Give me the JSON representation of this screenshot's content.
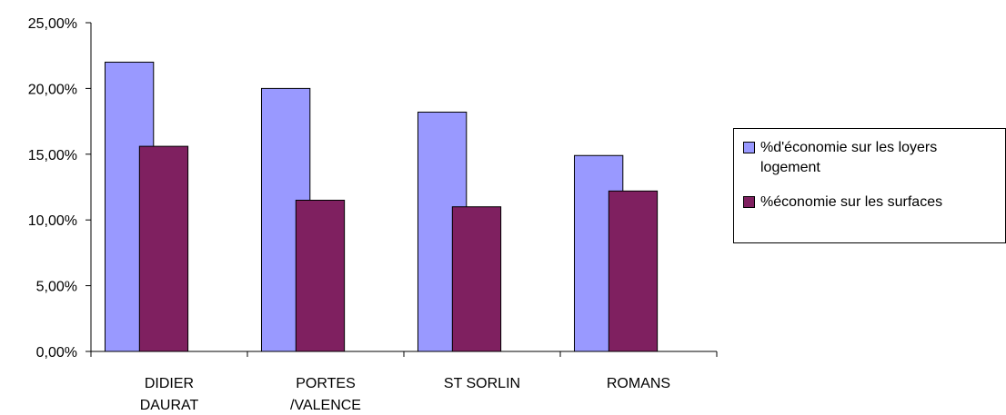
{
  "chart_data": {
    "type": "bar",
    "categories": [
      [
        "DIDIER",
        "DAURAT"
      ],
      [
        "PORTES",
        "/VALENCE"
      ],
      [
        "ST SORLIN"
      ],
      [
        "ROMANS"
      ]
    ],
    "series": [
      {
        "name": "%d'économie sur les loyers logement",
        "values": [
          0.22,
          0.2,
          0.182,
          0.149
        ],
        "color": "#9999ff"
      },
      {
        "name": "%économie sur les surfaces",
        "values": [
          0.156,
          0.115,
          0.11,
          0.122
        ],
        "color": "#7f2060"
      }
    ],
    "ylim": [
      0,
      0.25
    ],
    "yticks": [
      {
        "value": 0,
        "label": "0,00%"
      },
      {
        "value": 0.05,
        "label": "5,00%"
      },
      {
        "value": 0.1,
        "label": "10,00%"
      },
      {
        "value": 0.15,
        "label": "15,00%"
      },
      {
        "value": 0.2,
        "label": "20,00%"
      },
      {
        "value": 0.25,
        "label": "25,00%"
      }
    ],
    "legend_position": "right",
    "grid": false
  },
  "legend": {
    "item1": "%d'économie sur les loyers\nlogement",
    "item2": "%économie sur les surfaces"
  }
}
